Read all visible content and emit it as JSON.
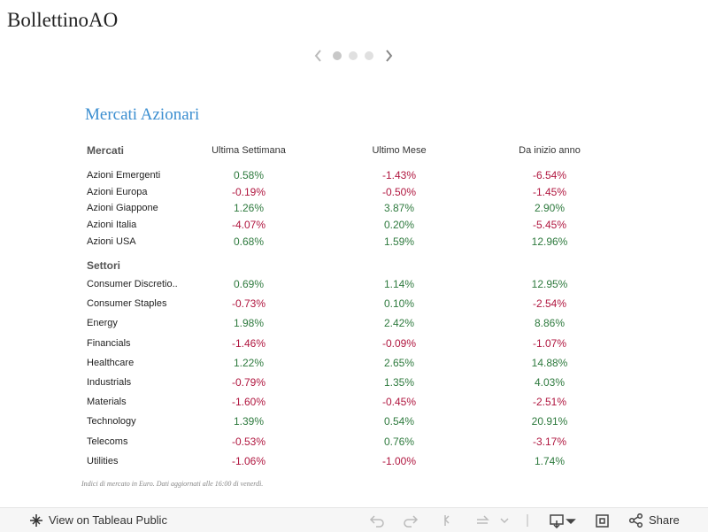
{
  "header": {
    "title": "BollettinoAO"
  },
  "table": {
    "title": "Mercati Azionari",
    "columns": [
      "Ultima Settimana",
      "Ultimo Mese",
      "Da inizio anno"
    ],
    "sections": [
      {
        "label": "Mercati",
        "rows": [
          {
            "name": "Azioni Emergenti",
            "values": [
              "0.58%",
              "-1.43%",
              "-6.54%"
            ]
          },
          {
            "name": "Azioni Europa",
            "values": [
              "-0.19%",
              "-0.50%",
              "-1.45%"
            ]
          },
          {
            "name": "Azioni Giappone",
            "values": [
              "1.26%",
              "3.87%",
              "2.90%"
            ]
          },
          {
            "name": "Azioni Italia",
            "values": [
              "-4.07%",
              "0.20%",
              "-5.45%"
            ]
          },
          {
            "name": "Azioni USA",
            "values": [
              "0.68%",
              "1.59%",
              "12.96%"
            ]
          }
        ]
      },
      {
        "label": "Settori",
        "rows": [
          {
            "name": "Consumer Discretio..",
            "values": [
              "0.69%",
              "1.14%",
              "12.95%"
            ]
          },
          {
            "name": "Consumer Staples",
            "values": [
              "-0.73%",
              "0.10%",
              "-2.54%"
            ]
          },
          {
            "name": "Energy",
            "values": [
              "1.98%",
              "2.42%",
              "8.86%"
            ]
          },
          {
            "name": "Financials",
            "values": [
              "-1.46%",
              "-0.09%",
              "-1.07%"
            ]
          },
          {
            "name": "Healthcare",
            "values": [
              "1.22%",
              "2.65%",
              "14.88%"
            ]
          },
          {
            "name": "Industrials",
            "values": [
              "-0.79%",
              "1.35%",
              "4.03%"
            ]
          },
          {
            "name": "Materials",
            "values": [
              "-1.60%",
              "-0.45%",
              "-2.51%"
            ]
          },
          {
            "name": "Technology",
            "values": [
              "1.39%",
              "0.54%",
              "20.91%"
            ]
          },
          {
            "name": "Telecoms",
            "values": [
              "-0.53%",
              "0.76%",
              "-3.17%"
            ]
          },
          {
            "name": "Utilities",
            "values": [
              "-1.06%",
              "-1.00%",
              "1.74%"
            ]
          }
        ]
      }
    ],
    "footnote": "Indici di mercato in Euro. Dati aggiornati alle 16:00 di venerdì."
  },
  "toolbar": {
    "view_link": "View on Tableau Public",
    "share": "Share"
  }
}
